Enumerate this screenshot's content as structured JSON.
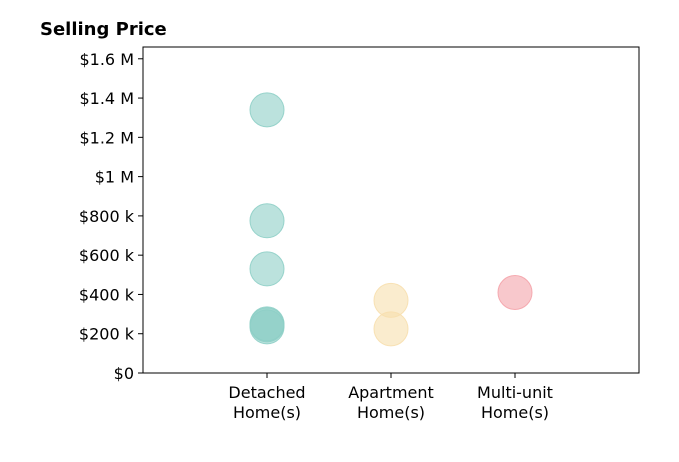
{
  "chart_data": {
    "type": "scatter",
    "title": "Selling Price",
    "xlabel": "",
    "ylabel": "",
    "categories": [
      "Detached\nHome(s)",
      "Apartment\nHome(s)",
      "Multi-unit\nHome(s)"
    ],
    "ylim": [
      0,
      1660000
    ],
    "yticks": [
      0,
      200000,
      400000,
      600000,
      800000,
      1000000,
      1200000,
      1400000,
      1600000
    ],
    "ytick_labels": [
      "$0",
      "$200 k",
      "$400 k",
      "$600 k",
      "$800 k",
      "$1 M",
      "$1.2 M",
      "$1.4 M",
      "$1.6 M"
    ],
    "grid": false,
    "series": [
      {
        "category": "Detached\nHome(s)",
        "color": "#8ecfc6",
        "values": [
          1340000,
          775000,
          530000,
          250000,
          235000,
          245000
        ]
      },
      {
        "category": "Apartment\nHome(s)",
        "color": "#f7dfae",
        "values": [
          370000,
          225000
        ]
      },
      {
        "category": "Multi-unit\nHome(s)",
        "color": "#f4a3aa",
        "values": [
          410000
        ]
      }
    ]
  }
}
